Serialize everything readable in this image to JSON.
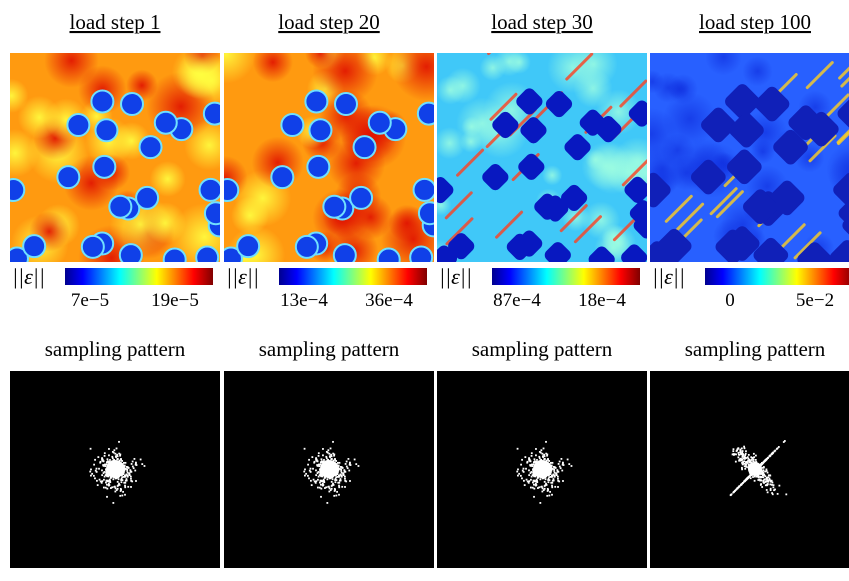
{
  "panels": [
    {
      "title": "load step 1",
      "colorbar_label": "||ε||",
      "ticks": [
        "7e−5",
        "19e−5"
      ],
      "sampling_label": "sampling pattern"
    },
    {
      "title": "load step 20",
      "colorbar_label": "||ε||",
      "ticks": [
        "13e−4",
        "36e−4"
      ],
      "sampling_label": "sampling pattern"
    },
    {
      "title": "load step 30",
      "colorbar_label": "||ε||",
      "ticks": [
        "87e−4",
        "18e−4"
      ],
      "sampling_label": "sampling pattern"
    },
    {
      "title": "load step 100",
      "colorbar_label": "||ε||",
      "ticks": [
        "0",
        "5e−2"
      ],
      "sampling_label": "sampling pattern"
    }
  ]
}
